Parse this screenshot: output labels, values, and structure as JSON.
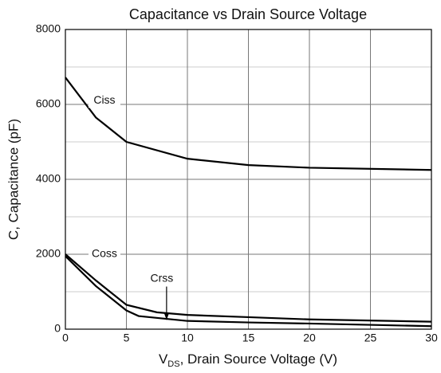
{
  "chart_data": {
    "type": "line",
    "title": "Capacitance vs Drain Source Voltage",
    "xlabel": {
      "main": "V",
      "sub": "DS",
      "rest": ", Drain Source Voltage (V)"
    },
    "ylabel": "C, Capacitance (pF)",
    "xlim": [
      0,
      30
    ],
    "xticks": [
      0,
      5,
      10,
      15,
      20,
      25,
      30
    ],
    "ylim": [
      0,
      8000
    ],
    "yticks": [
      0,
      2000,
      4000,
      6000,
      8000
    ],
    "minor_yticks": [
      1000,
      3000,
      5000,
      7000
    ],
    "grid": true,
    "series": [
      {
        "name": "Ciss",
        "color": "#000000",
        "x": [
          0,
          2.5,
          5,
          10,
          15,
          20,
          30
        ],
        "values": [
          6720,
          5650,
          5000,
          4550,
          4380,
          4310,
          4250
        ]
      },
      {
        "name": "Coss",
        "color": "#000000",
        "x": [
          0,
          2.5,
          5,
          7.5,
          10,
          15,
          20,
          30
        ],
        "values": [
          2000,
          1300,
          650,
          450,
          380,
          320,
          260,
          200
        ]
      },
      {
        "name": "Crss",
        "color": "#000000",
        "x": [
          0,
          2.5,
          5,
          6,
          10,
          15,
          20,
          30
        ],
        "values": [
          1950,
          1150,
          500,
          350,
          220,
          180,
          150,
          80
        ]
      }
    ],
    "annotations": [
      {
        "text": "Ciss",
        "x": 3.2,
        "y": 6100
      },
      {
        "text": "Coss",
        "x": 3.2,
        "y": 2000
      },
      {
        "text": "Crss",
        "x": 7.9,
        "y": 1350,
        "arrow_to": [
          7.9,
          250
        ]
      }
    ]
  }
}
